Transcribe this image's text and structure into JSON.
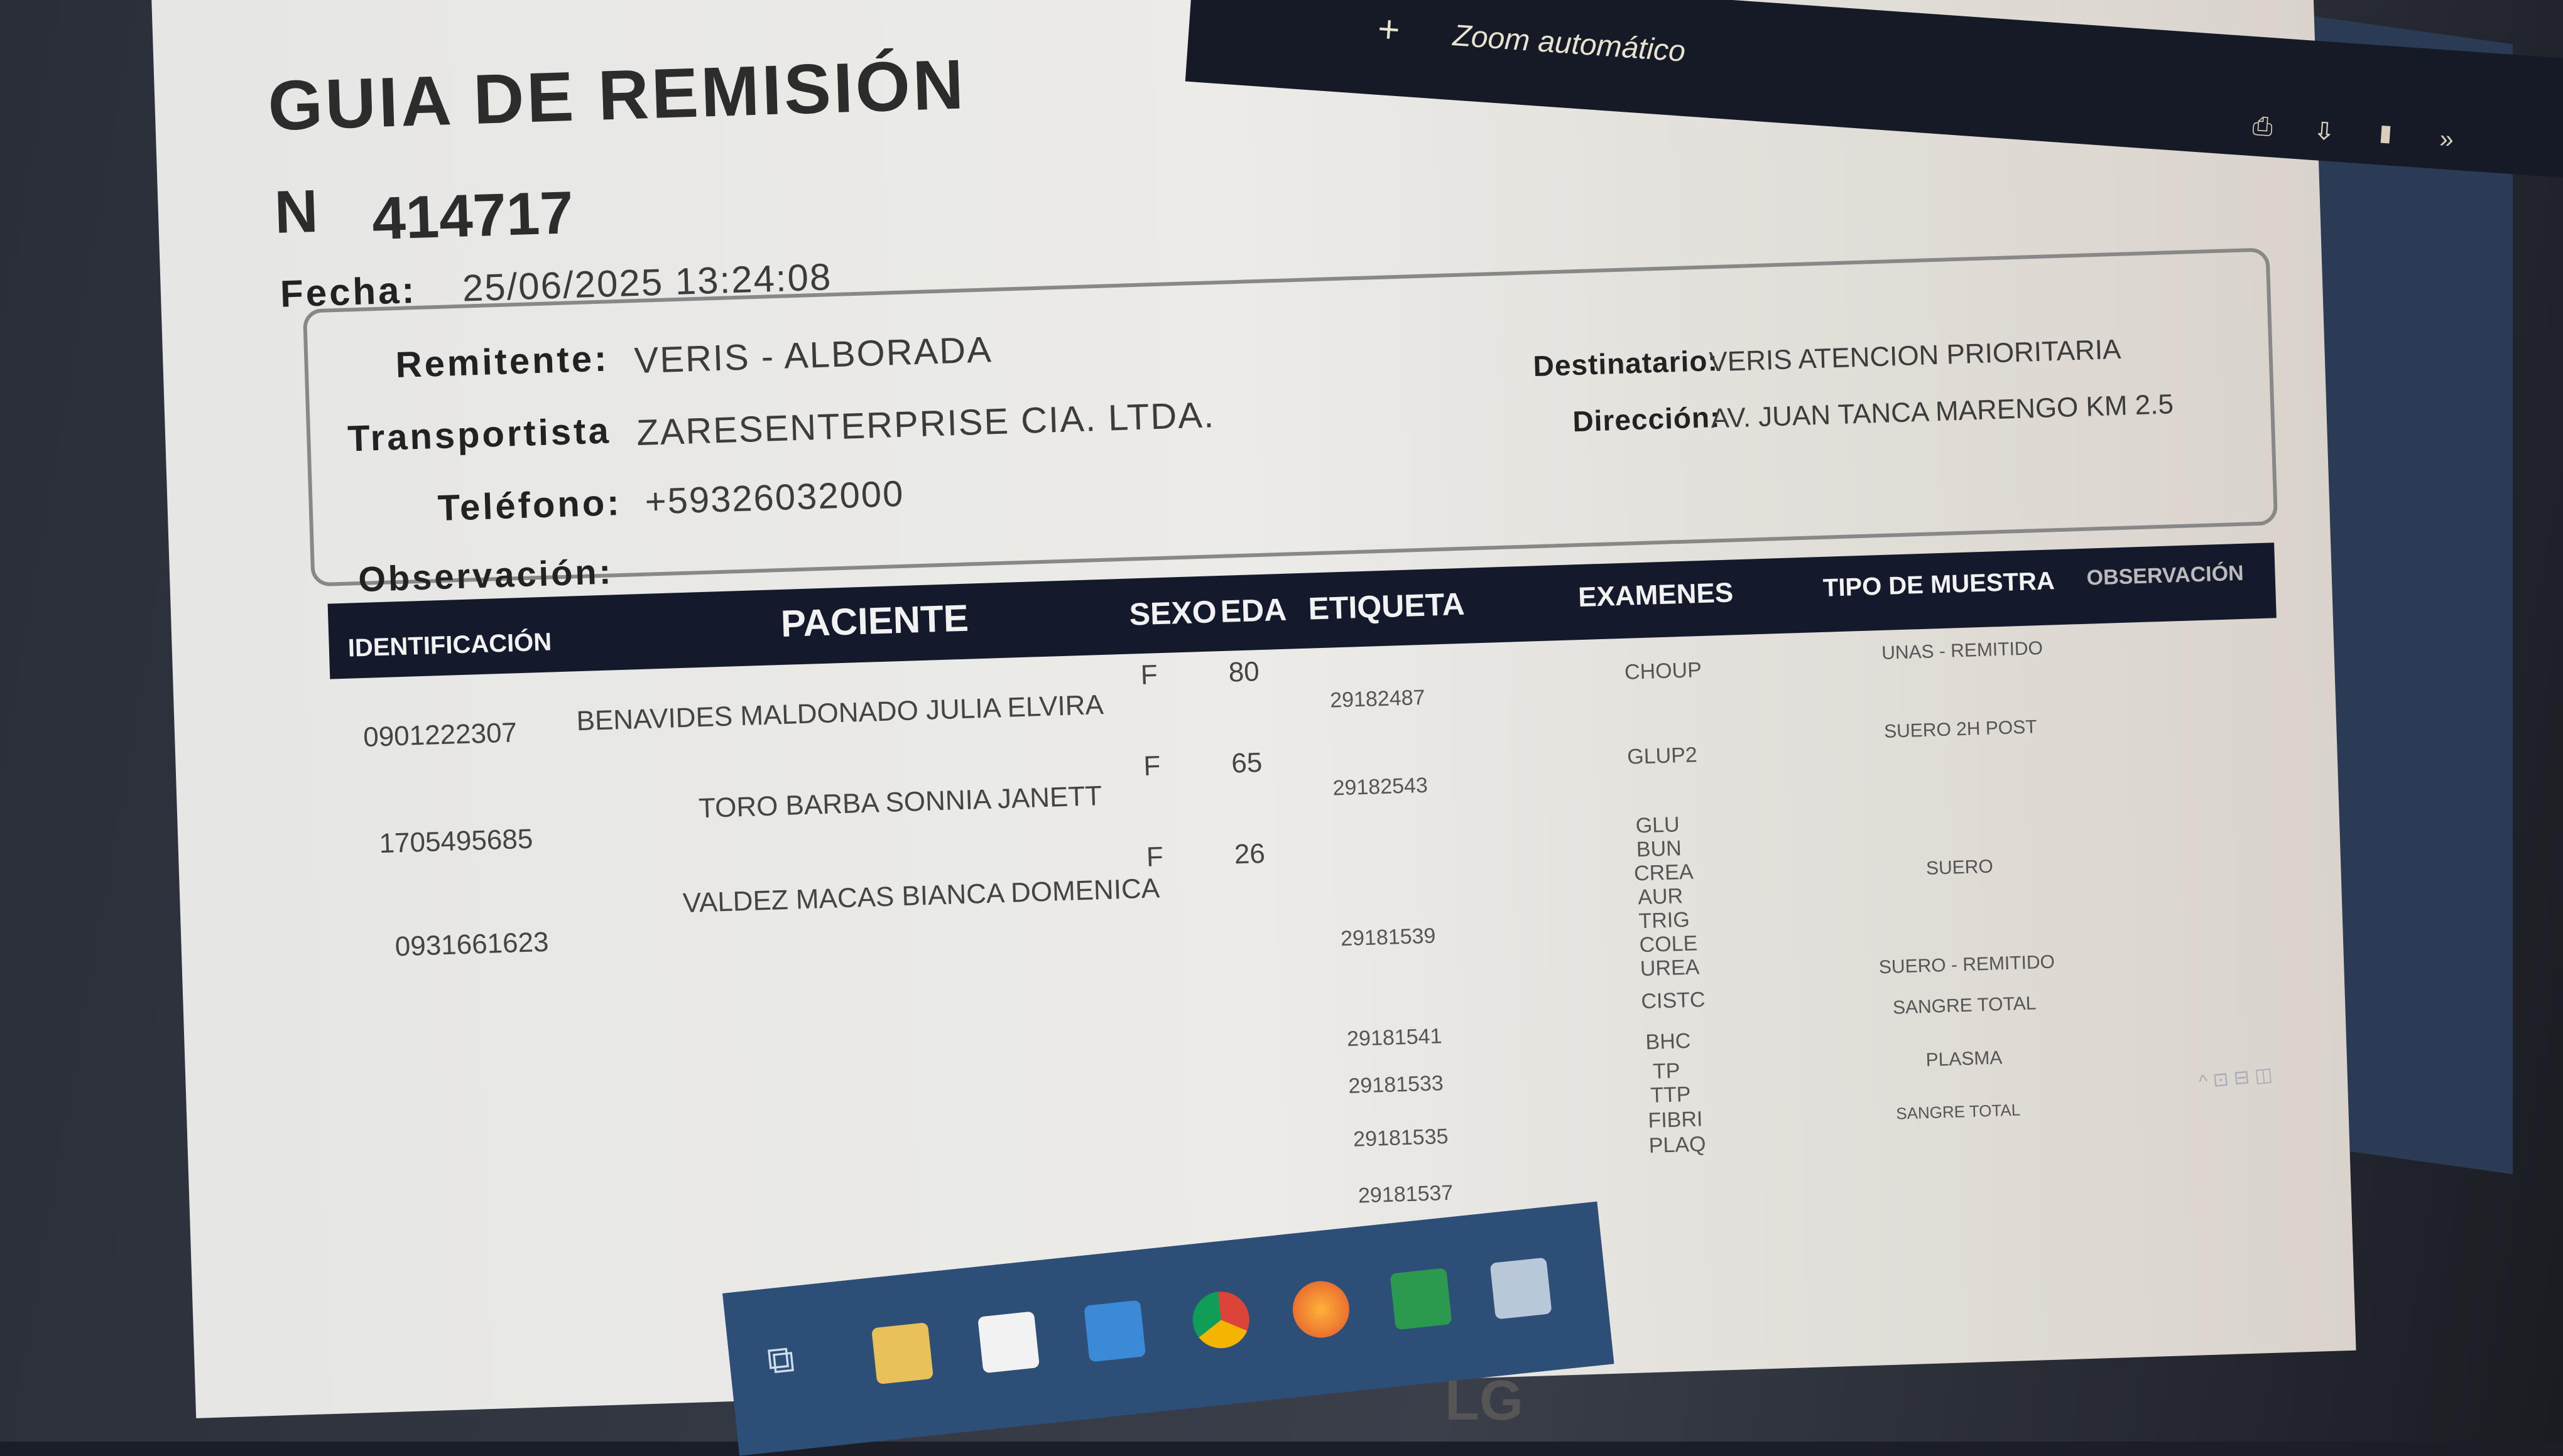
{
  "viewer": {
    "zoom_label": "Zoom automático",
    "zoom_in_icon": "plus-icon"
  },
  "document": {
    "title": "GUIA DE REMISIÓN",
    "number_label": "N",
    "number": "414717",
    "fecha_label": "Fecha:",
    "fecha": "25/06/2025 13:24:08",
    "remitente_label": "Remitente:",
    "remitente": "VERIS - ALBORADA",
    "transportista_label": "Transportista",
    "transportista": "ZARESENTERPRISE CIA. LTDA.",
    "telefono_label": "Teléfono:",
    "telefono": "+59326032000",
    "observacion_label": "Observación:",
    "destinatario_label": "Destinatario:",
    "destinatario": "VERIS ATENCION PRIORITARIA",
    "direccion_label": "Dirección:",
    "direccion": "AV. JUAN TANCA MARENGO KM 2.5"
  },
  "table": {
    "headers": [
      "IDENTIFICACIÓN",
      "PACIENTE",
      "SEXO",
      "EDA",
      "ETIQUETA",
      "EXAMENES",
      "TIPO DE MUESTRA",
      "OBSERVACIÓN"
    ],
    "patients": [
      {
        "id": "0901222307",
        "name": "BENAVIDES MALDONADO JULIA ELVIRA",
        "sexo": "F",
        "edad": "80"
      },
      {
        "id": "1705495685",
        "name": "TORO BARBA SONNIA JANETT",
        "sexo": "F",
        "edad": "65"
      },
      {
        "id": "0931661623",
        "name": "VALDEZ MACAS BIANCA DOMENICA",
        "sexo": "F",
        "edad": "26"
      }
    ],
    "etiquetas": [
      "29182487",
      "29182543",
      "29181539",
      "29181541",
      "29181533",
      "29181535",
      "29181537"
    ],
    "examenes": [
      "CHOUP",
      "GLUP2",
      "GLU",
      "BUN",
      "CREA",
      "AUR",
      "TRIG",
      "COLE",
      "UREA",
      "CISTC",
      "BHC",
      "TP",
      "TTP",
      "FIBRI",
      "PLAQ"
    ],
    "tipos": [
      "UNAS - REMITIDO",
      "SUERO 2H POST",
      "SUERO",
      "SUERO - REMITIDO",
      "SANGRE TOTAL",
      "PLASMA",
      "SANGRE TOTAL"
    ]
  },
  "monitor": {
    "brand": "LG"
  }
}
